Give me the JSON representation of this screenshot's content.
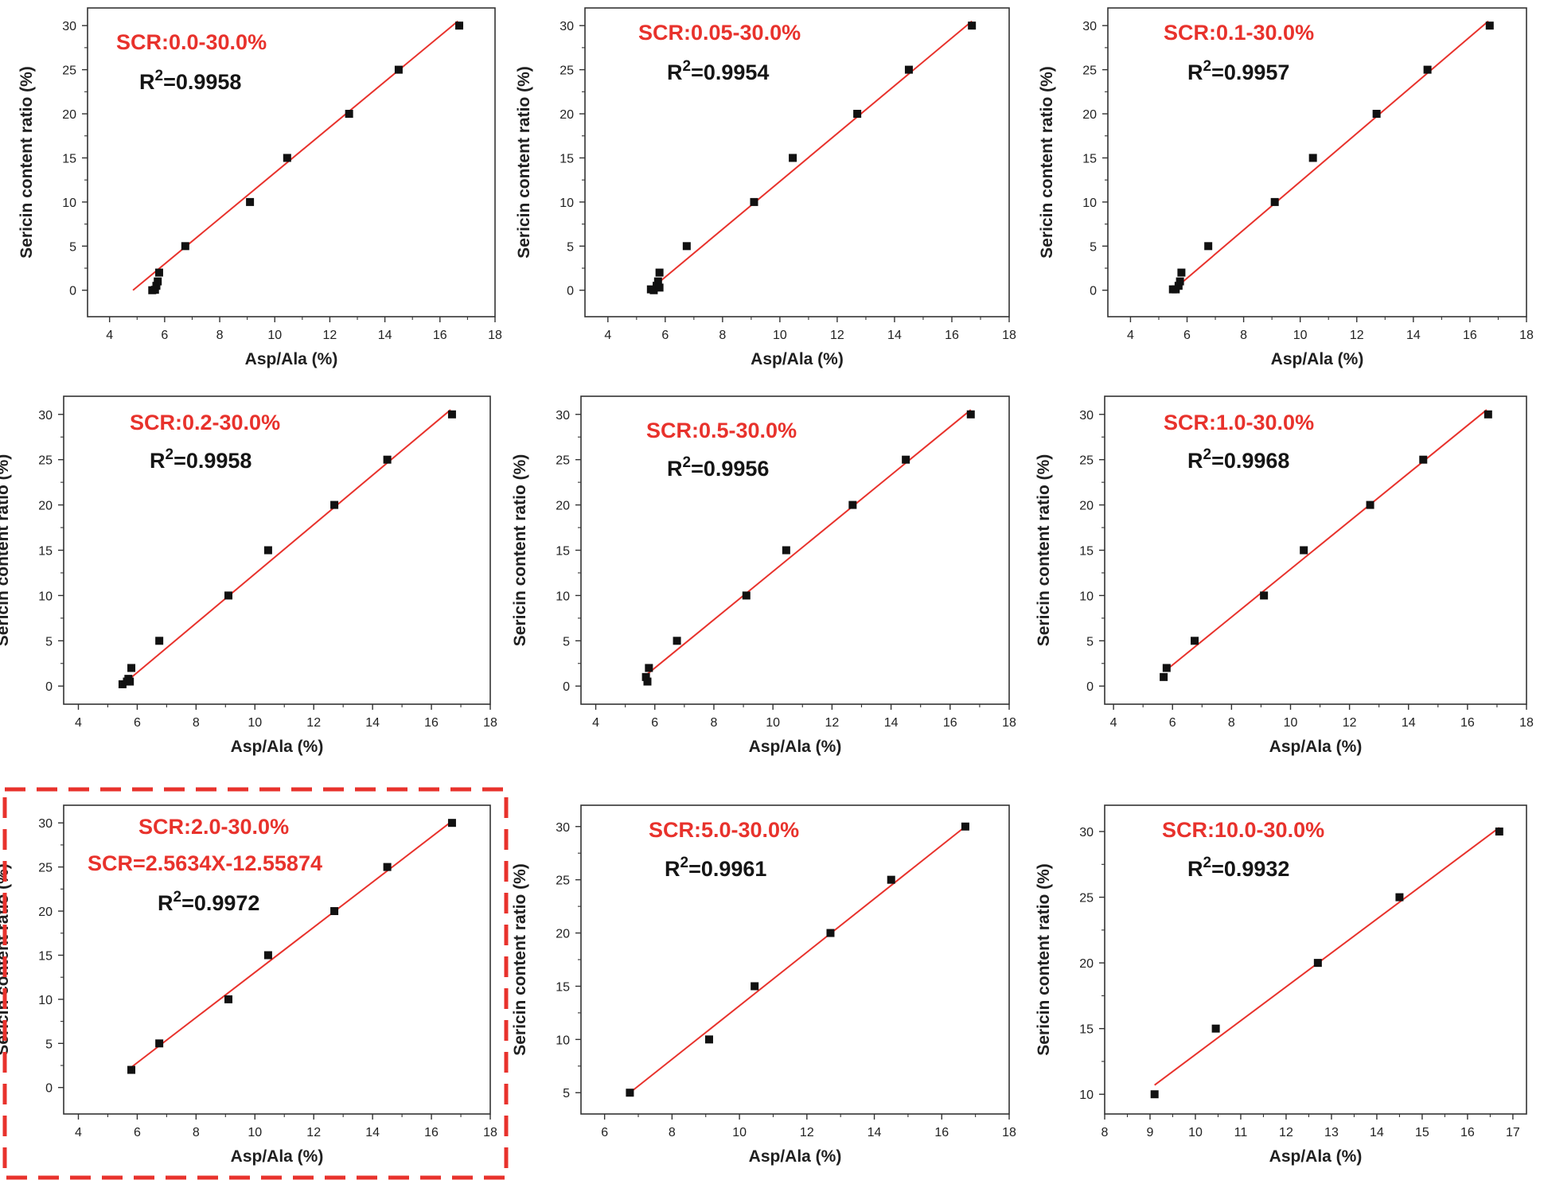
{
  "figure": {
    "highlight_color": "#e8322c",
    "fit_line_color": "#e8322c",
    "point_color": "#111111"
  },
  "chart_data": [
    {
      "type": "scatter",
      "title": "SCR:0.0-30.0%",
      "r2_prefix": "R",
      "r2_sup": "2",
      "r2_value": "=0.9958",
      "xlabel": "Asp/Ala (%)",
      "ylabel": "Sericin content ratio (%)",
      "xlim": [
        3.2,
        18
      ],
      "ylim": [
        -3,
        32
      ],
      "xticks": [
        4,
        6,
        8,
        10,
        12,
        14,
        16,
        18
      ],
      "yticks": [
        0,
        5,
        10,
        15,
        20,
        25,
        30
      ],
      "points": [
        [
          5.55,
          0
        ],
        [
          5.65,
          0.05
        ],
        [
          5.7,
          0.5
        ],
        [
          5.75,
          1
        ],
        [
          5.8,
          2
        ],
        [
          6.75,
          5
        ],
        [
          9.1,
          10
        ],
        [
          10.45,
          15
        ],
        [
          12.7,
          20
        ],
        [
          14.5,
          25
        ],
        [
          16.7,
          30
        ]
      ],
      "fit": [
        [
          4.85,
          0
        ],
        [
          16.65,
          30.5
        ]
      ]
    },
    {
      "type": "scatter",
      "title": "SCR:0.05-30.0%",
      "r2_prefix": "R",
      "r2_sup": "2",
      "r2_value": "=0.9954",
      "xlabel": "Asp/Ala (%)",
      "ylabel": "Sericin content ratio (%)",
      "xlim": [
        3.2,
        18
      ],
      "ylim": [
        -3,
        32
      ],
      "xticks": [
        4,
        6,
        8,
        10,
        12,
        14,
        16,
        18
      ],
      "yticks": [
        0,
        5,
        10,
        15,
        20,
        25,
        30
      ],
      "points": [
        [
          5.5,
          0.1
        ],
        [
          5.6,
          0
        ],
        [
          5.7,
          0.5
        ],
        [
          5.75,
          1
        ],
        [
          5.8,
          2
        ],
        [
          5.8,
          0.3
        ],
        [
          6.75,
          5
        ],
        [
          9.1,
          10
        ],
        [
          10.45,
          15
        ],
        [
          12.7,
          20
        ],
        [
          14.5,
          25
        ],
        [
          16.7,
          30
        ]
      ],
      "fit": [
        [
          5.45,
          0
        ],
        [
          16.7,
          30.5
        ]
      ]
    },
    {
      "type": "scatter",
      "title": "SCR:0.1-30.0%",
      "r2_prefix": "R",
      "r2_sup": "2",
      "r2_value": "=0.9957",
      "xlabel": "Asp/Ala (%)",
      "ylabel": "Sericin content ratio (%)",
      "xlim": [
        3.2,
        18
      ],
      "ylim": [
        -3,
        32
      ],
      "xticks": [
        4,
        6,
        8,
        10,
        12,
        14,
        16,
        18
      ],
      "yticks": [
        0,
        5,
        10,
        15,
        20,
        25,
        30
      ],
      "points": [
        [
          5.5,
          0.1
        ],
        [
          5.6,
          0.1
        ],
        [
          5.7,
          0.5
        ],
        [
          5.75,
          1
        ],
        [
          5.8,
          2
        ],
        [
          6.75,
          5
        ],
        [
          9.1,
          10
        ],
        [
          10.45,
          15
        ],
        [
          12.7,
          20
        ],
        [
          14.5,
          25
        ],
        [
          16.7,
          30
        ]
      ],
      "fit": [
        [
          5.5,
          0
        ],
        [
          16.65,
          30.5
        ]
      ]
    },
    {
      "type": "scatter",
      "title": "SCR:0.2-30.0%",
      "r2_prefix": "R",
      "r2_sup": "2",
      "r2_value": "=0.9958",
      "xlabel": "Asp/Ala (%)",
      "ylabel": "Sericin content ratio (%)",
      "xlim": [
        3.5,
        18
      ],
      "ylim": [
        -2,
        32
      ],
      "xticks": [
        4,
        6,
        8,
        10,
        12,
        14,
        16,
        18
      ],
      "yticks": [
        0,
        5,
        10,
        15,
        20,
        25,
        30
      ],
      "points": [
        [
          5.5,
          0.2
        ],
        [
          5.65,
          0.5
        ],
        [
          5.7,
          0.8
        ],
        [
          5.75,
          0.5
        ],
        [
          5.8,
          2
        ],
        [
          6.75,
          5
        ],
        [
          9.1,
          10
        ],
        [
          10.45,
          15
        ],
        [
          12.7,
          20
        ],
        [
          14.5,
          25
        ],
        [
          16.7,
          30
        ]
      ],
      "fit": [
        [
          5.45,
          0
        ],
        [
          16.65,
          30.5
        ]
      ]
    },
    {
      "type": "scatter",
      "title": "SCR:0.5-30.0%",
      "r2_prefix": "R",
      "r2_sup": "2",
      "r2_value": "=0.9956",
      "xlabel": "Asp/Ala (%)",
      "ylabel": "Sericin content ratio (%)",
      "xlim": [
        3.5,
        18
      ],
      "ylim": [
        -2,
        32
      ],
      "xticks": [
        4,
        6,
        8,
        10,
        12,
        14,
        16,
        18
      ],
      "yticks": [
        0,
        5,
        10,
        15,
        20,
        25,
        30
      ],
      "points": [
        [
          5.7,
          1
        ],
        [
          5.75,
          0.5
        ],
        [
          5.8,
          2
        ],
        [
          6.75,
          5
        ],
        [
          9.1,
          10
        ],
        [
          10.45,
          15
        ],
        [
          12.7,
          20
        ],
        [
          14.5,
          25
        ],
        [
          16.7,
          30
        ]
      ],
      "fit": [
        [
          5.7,
          1.2
        ],
        [
          16.7,
          30.5
        ]
      ]
    },
    {
      "type": "scatter",
      "title": "SCR:1.0-30.0%",
      "r2_prefix": "R",
      "r2_sup": "2",
      "r2_value": "=0.9968",
      "xlabel": "Asp/Ala (%)",
      "ylabel": "Sericin content ratio (%)",
      "xlim": [
        3.7,
        18
      ],
      "ylim": [
        -2,
        32
      ],
      "xticks": [
        4,
        6,
        8,
        10,
        12,
        14,
        16,
        18
      ],
      "yticks": [
        0,
        5,
        10,
        15,
        20,
        25,
        30
      ],
      "points": [
        [
          5.7,
          1
        ],
        [
          5.8,
          2
        ],
        [
          6.75,
          5
        ],
        [
          9.1,
          10
        ],
        [
          10.45,
          15
        ],
        [
          12.7,
          20
        ],
        [
          14.5,
          25
        ],
        [
          16.7,
          30
        ]
      ],
      "fit": [
        [
          5.8,
          1.8
        ],
        [
          16.65,
          30.5
        ]
      ]
    },
    {
      "type": "scatter",
      "title": "SCR:2.0-30.0%",
      "equation": "SCR=2.5634X-12.55874",
      "r2_prefix": "R",
      "r2_sup": "2",
      "r2_value": "=0.9972",
      "highlighted": true,
      "xlabel": "Asp/Ala (%)",
      "ylabel": "Sericin content ratio (%)",
      "xlim": [
        3.5,
        18
      ],
      "ylim": [
        -3,
        32
      ],
      "xticks": [
        4,
        6,
        8,
        10,
        12,
        14,
        16,
        18
      ],
      "yticks": [
        0,
        5,
        10,
        15,
        20,
        25,
        30
      ],
      "points": [
        [
          5.8,
          2
        ],
        [
          6.75,
          5
        ],
        [
          9.1,
          10
        ],
        [
          10.45,
          15
        ],
        [
          12.7,
          20
        ],
        [
          14.5,
          25
        ],
        [
          16.7,
          30
        ]
      ],
      "fit": [
        [
          5.8,
          2.3
        ],
        [
          16.7,
          30.2
        ]
      ]
    },
    {
      "type": "scatter",
      "title": "SCR:5.0-30.0%",
      "r2_prefix": "R",
      "r2_sup": "2",
      "r2_value": "=0.9961",
      "xlabel": "Asp/Ala (%)",
      "ylabel": "Sericin content ratio (%)",
      "xlim": [
        5.3,
        18
      ],
      "ylim": [
        3,
        32
      ],
      "xticks": [
        6,
        8,
        10,
        12,
        14,
        16,
        18
      ],
      "yticks": [
        5,
        10,
        15,
        20,
        25,
        30
      ],
      "points": [
        [
          6.75,
          5
        ],
        [
          9.1,
          10
        ],
        [
          10.45,
          15
        ],
        [
          12.7,
          20
        ],
        [
          14.5,
          25
        ],
        [
          16.7,
          30
        ]
      ],
      "fit": [
        [
          6.75,
          5
        ],
        [
          16.7,
          30
        ]
      ]
    },
    {
      "type": "scatter",
      "title": "SCR:10.0-30.0%",
      "r2_prefix": "R",
      "r2_sup": "2",
      "r2_value": "=0.9932",
      "xlabel": "Asp/Ala (%)",
      "ylabel": "Sericin content ratio (%)",
      "xlim": [
        8,
        17.3
      ],
      "ylim": [
        8.5,
        32
      ],
      "xticks": [
        8,
        9,
        10,
        11,
        12,
        13,
        14,
        15,
        16,
        17
      ],
      "yticks": [
        10,
        15,
        20,
        25,
        30
      ],
      "points": [
        [
          9.1,
          10
        ],
        [
          10.45,
          15
        ],
        [
          12.7,
          20
        ],
        [
          14.5,
          25
        ],
        [
          16.7,
          30
        ]
      ],
      "fit": [
        [
          9.1,
          10.7
        ],
        [
          16.7,
          30.3
        ]
      ]
    }
  ]
}
